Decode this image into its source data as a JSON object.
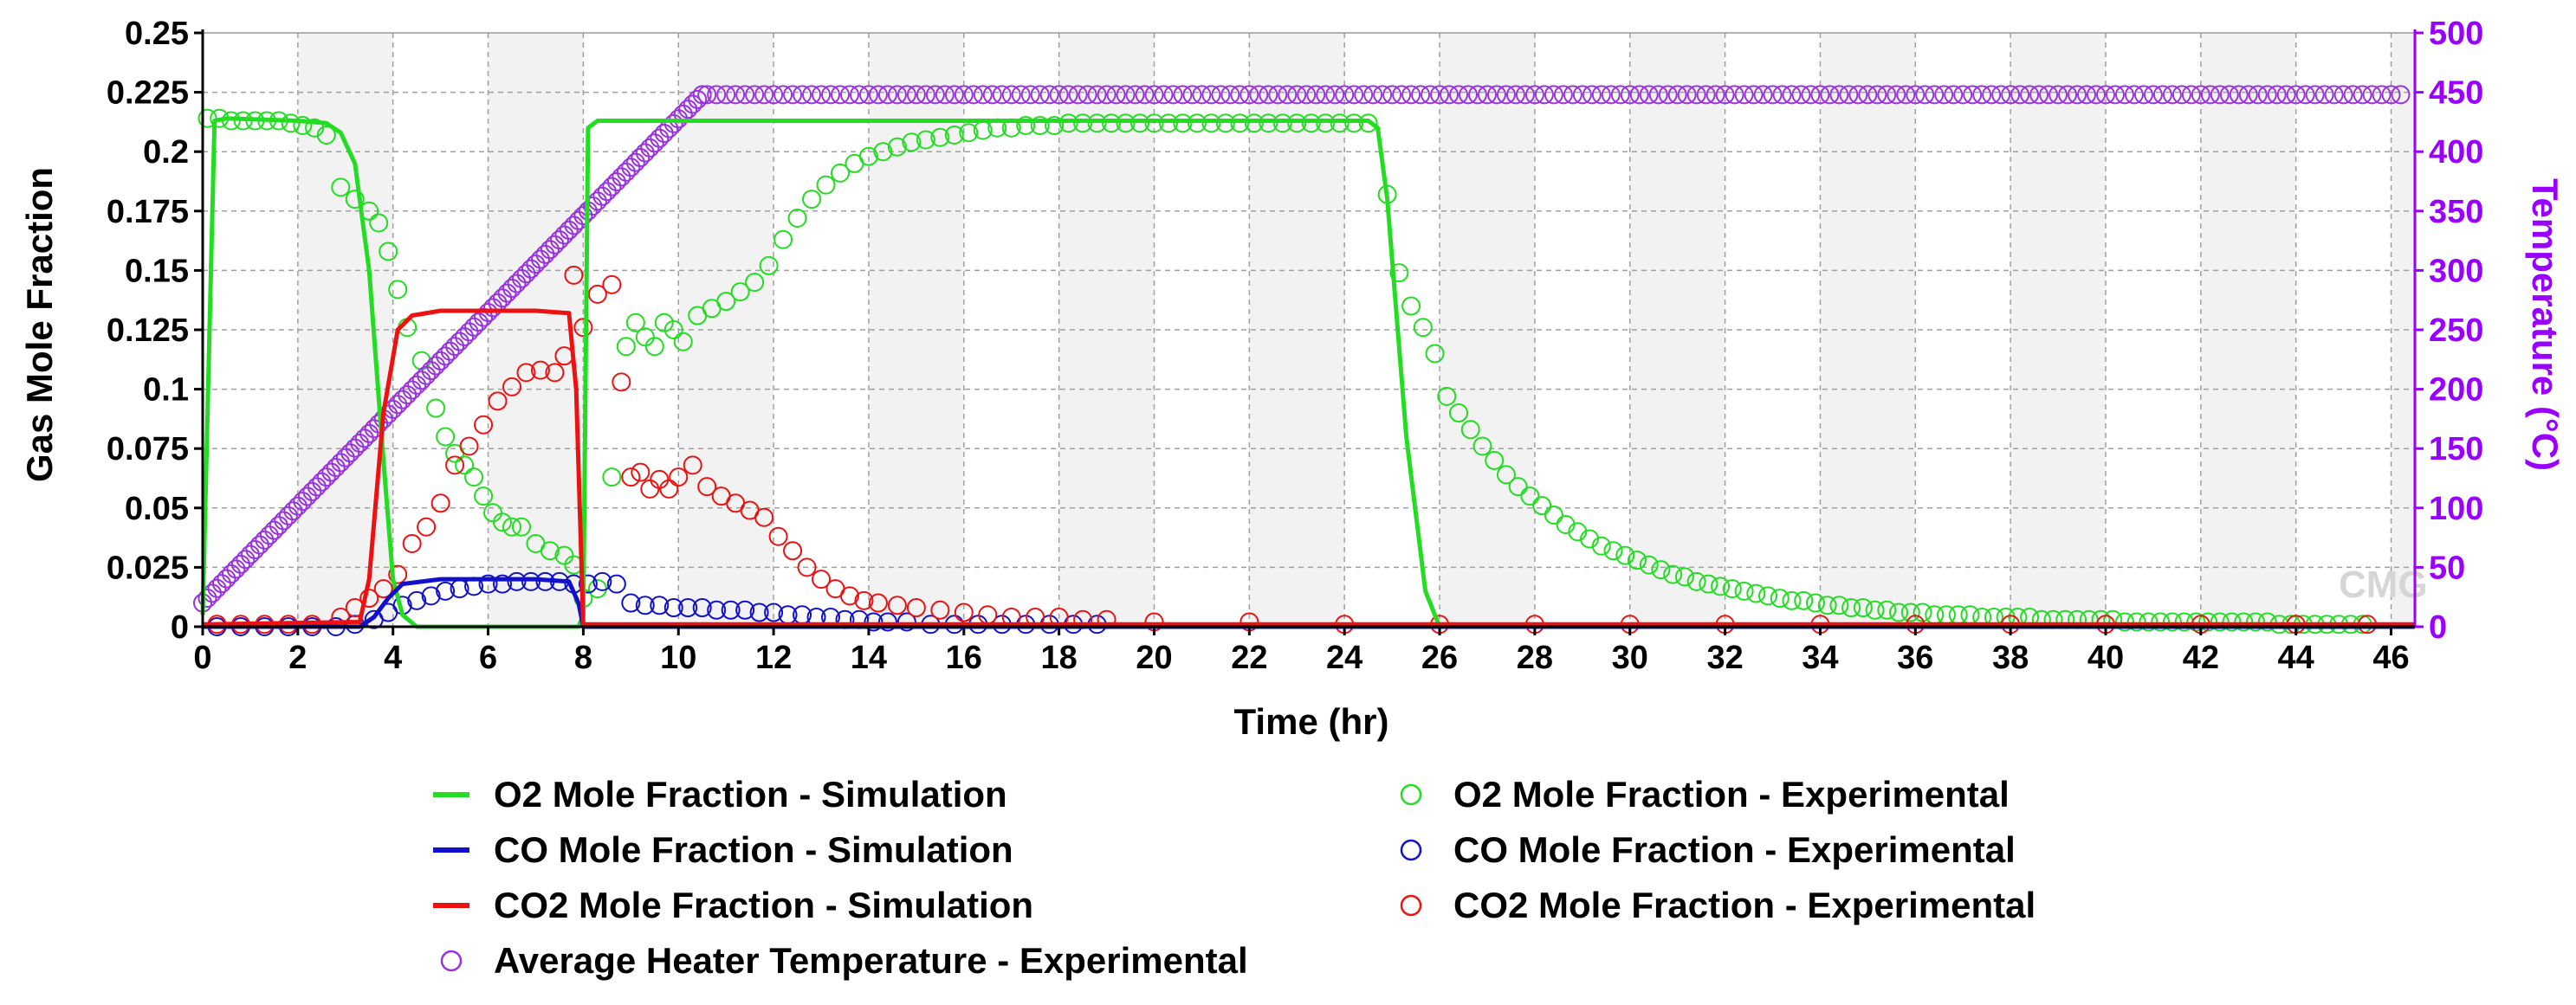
{
  "chart_data": {
    "type": "line",
    "title": "",
    "xlabel": "Time (hr)",
    "ylabel": "Gas Mole Fraction",
    "y2label": "Temperature (°C)",
    "xlim": [
      0,
      46.5
    ],
    "ylim": [
      0,
      0.25
    ],
    "y2lim": [
      0,
      500
    ],
    "xticks": [
      0,
      2,
      4,
      6,
      8,
      10,
      12,
      14,
      16,
      18,
      20,
      22,
      24,
      26,
      28,
      30,
      32,
      34,
      36,
      38,
      40,
      42,
      44,
      46
    ],
    "yticks": [
      "0",
      "0.025",
      "0.05",
      "0.075",
      "0.1",
      "0.125",
      "0.15",
      "0.175",
      "0.2",
      "0.225",
      "0.25"
    ],
    "y2ticks": [
      "0",
      "50",
      "100",
      "150",
      "200",
      "250",
      "300",
      "350",
      "400",
      "450",
      "500"
    ],
    "grid": true,
    "watermark": "CMG",
    "colors": {
      "o2": "#22dd22",
      "co": "#1111cc",
      "co2": "#ee1111",
      "temp": "#9933dd",
      "y2axis": "#9900ff"
    },
    "series": [
      {
        "name": "O2 Mole Fraction  - Simulation",
        "kind": "line",
        "axis": "left",
        "color": "#22dd22",
        "x": [
          0,
          0.25,
          0.5,
          2.0,
          2.6,
          2.9,
          3.2,
          3.5,
          3.8,
          4.0,
          4.2,
          4.5,
          7.6,
          7.9,
          8.0,
          8.1,
          8.3,
          10.0,
          24.5,
          24.7,
          24.9,
          25.3,
          25.7,
          26.0,
          46.5
        ],
        "y": [
          0.005,
          0.213,
          0.214,
          0.213,
          0.212,
          0.208,
          0.195,
          0.15,
          0.07,
          0.02,
          0.005,
          0.0,
          0.0,
          0.0,
          0.005,
          0.21,
          0.213,
          0.213,
          0.213,
          0.21,
          0.18,
          0.08,
          0.015,
          0.0,
          0.0
        ]
      },
      {
        "name": "CO Mole Fraction - Simulation",
        "kind": "line",
        "axis": "left",
        "color": "#1111cc",
        "x": [
          0,
          3.3,
          3.6,
          3.9,
          4.2,
          5.0,
          6.0,
          7.0,
          7.7,
          7.9,
          8.0,
          46.5
        ],
        "y": [
          0,
          0,
          0.004,
          0.012,
          0.018,
          0.02,
          0.02,
          0.02,
          0.019,
          0.01,
          0.0,
          0.0
        ]
      },
      {
        "name": "CO2 Mole Fraction - Simulation",
        "kind": "line",
        "axis": "left",
        "color": "#ee1111",
        "x": [
          0,
          3.3,
          3.5,
          3.8,
          4.1,
          4.4,
          5.0,
          6.0,
          7.0,
          7.7,
          7.85,
          8.0,
          46.5
        ],
        "y": [
          0.001,
          0.002,
          0.02,
          0.09,
          0.125,
          0.131,
          0.133,
          0.133,
          0.133,
          0.132,
          0.1,
          0.001,
          0.001
        ]
      },
      {
        "name": "O2 Mole Fraction  - Experimental",
        "kind": "scatter",
        "axis": "left",
        "color": "#22dd22",
        "x": [
          0.1,
          0.35,
          0.6,
          0.85,
          1.1,
          1.35,
          1.6,
          1.85,
          2.1,
          2.35,
          2.6,
          2.9,
          3.2,
          3.5,
          3.7,
          3.9,
          4.1,
          4.3,
          4.6,
          4.9,
          5.1,
          5.3,
          5.5,
          5.7,
          5.9,
          6.1,
          6.3,
          6.5,
          6.7,
          7.0,
          7.3,
          7.6,
          7.8,
          8.0,
          8.3,
          8.6,
          8.9,
          9.1,
          9.3,
          9.5,
          9.7,
          9.9,
          10.1,
          10.4,
          10.7,
          11.0,
          11.3,
          11.6,
          11.9,
          12.2,
          12.5,
          12.8,
          13.1,
          13.4,
          13.7,
          14.0,
          14.3,
          14.6,
          14.9,
          15.2,
          15.5,
          15.8,
          16.1,
          16.4,
          16.7,
          17.0,
          17.3,
          17.6,
          17.9,
          18.2,
          18.5,
          18.8,
          19.1,
          19.4,
          19.7,
          20.0,
          20.3,
          20.6,
          20.9,
          21.2,
          21.5,
          21.8,
          22.1,
          22.4,
          22.7,
          23.0,
          23.3,
          23.6,
          23.9,
          24.2,
          24.5,
          24.9,
          25.15,
          25.4,
          25.65,
          25.9,
          26.15,
          26.4,
          26.65,
          26.9,
          27.15,
          27.4,
          27.65,
          27.9,
          28.15,
          28.4,
          28.65,
          28.9,
          29.15,
          29.4,
          29.65,
          29.9,
          30.15,
          30.4,
          30.65,
          30.9,
          31.15,
          31.4,
          31.65,
          31.9,
          32.15,
          32.4,
          32.65,
          32.9,
          33.15,
          33.4,
          33.65,
          33.9,
          34.15,
          34.4,
          34.65,
          34.9,
          35.15,
          35.4,
          35.65,
          35.9,
          36.15,
          36.4,
          36.65,
          36.9,
          37.15,
          37.4,
          37.65,
          37.9,
          38.15,
          38.4,
          38.65,
          38.9,
          39.15,
          39.4,
          39.65,
          39.9,
          40.15,
          40.4,
          40.65,
          40.9,
          41.15,
          41.4,
          41.65,
          41.9,
          42.15,
          42.4,
          42.65,
          42.9,
          43.15,
          43.4,
          43.65,
          43.9,
          44.15,
          44.4,
          44.65,
          44.9,
          45.15,
          45.4
        ],
        "y": [
          0.214,
          0.214,
          0.213,
          0.213,
          0.213,
          0.213,
          0.213,
          0.212,
          0.211,
          0.21,
          0.207,
          0.185,
          0.18,
          0.175,
          0.17,
          0.158,
          0.142,
          0.126,
          0.112,
          0.092,
          0.08,
          0.073,
          0.068,
          0.063,
          0.055,
          0.048,
          0.044,
          0.042,
          0.042,
          0.035,
          0.032,
          0.03,
          0.026,
          0.012,
          0.016,
          0.063,
          0.118,
          0.128,
          0.122,
          0.118,
          0.128,
          0.125,
          0.12,
          0.131,
          0.134,
          0.137,
          0.141,
          0.145,
          0.152,
          0.163,
          0.172,
          0.18,
          0.186,
          0.191,
          0.195,
          0.198,
          0.2,
          0.202,
          0.204,
          0.205,
          0.206,
          0.207,
          0.208,
          0.209,
          0.21,
          0.21,
          0.211,
          0.211,
          0.211,
          0.212,
          0.212,
          0.212,
          0.212,
          0.212,
          0.212,
          0.212,
          0.212,
          0.212,
          0.212,
          0.212,
          0.212,
          0.212,
          0.212,
          0.212,
          0.212,
          0.212,
          0.212,
          0.212,
          0.212,
          0.212,
          0.212,
          0.182,
          0.149,
          0.135,
          0.126,
          0.115,
          0.097,
          0.09,
          0.083,
          0.076,
          0.07,
          0.064,
          0.059,
          0.055,
          0.051,
          0.047,
          0.043,
          0.04,
          0.037,
          0.034,
          0.032,
          0.03,
          0.028,
          0.026,
          0.024,
          0.022,
          0.021,
          0.019,
          0.018,
          0.017,
          0.016,
          0.015,
          0.014,
          0.013,
          0.012,
          0.011,
          0.011,
          0.01,
          0.009,
          0.009,
          0.008,
          0.008,
          0.007,
          0.007,
          0.006,
          0.006,
          0.006,
          0.005,
          0.005,
          0.005,
          0.005,
          0.004,
          0.004,
          0.004,
          0.004,
          0.004,
          0.003,
          0.003,
          0.003,
          0.003,
          0.003,
          0.003,
          0.003,
          0.002,
          0.002,
          0.002,
          0.002,
          0.002,
          0.002,
          0.002,
          0.002,
          0.002,
          0.002,
          0.002,
          0.002,
          0.002,
          0.001,
          0.001,
          0.001,
          0.001,
          0.001,
          0.001,
          0.001,
          0.001
        ]
      },
      {
        "name": "CO Mole Fraction  - Experimental",
        "kind": "scatter",
        "axis": "left",
        "color": "#1111cc",
        "x": [
          0.3,
          0.8,
          1.3,
          1.8,
          2.3,
          2.8,
          3.2,
          3.6,
          3.9,
          4.2,
          4.5,
          4.8,
          5.1,
          5.4,
          5.7,
          6.0,
          6.3,
          6.6,
          6.9,
          7.2,
          7.5,
          7.8,
          8.1,
          8.4,
          8.7,
          9.0,
          9.3,
          9.6,
          9.9,
          10.2,
          10.5,
          10.8,
          11.1,
          11.4,
          11.7,
          12.0,
          12.3,
          12.6,
          12.9,
          13.2,
          13.5,
          13.8,
          14.1,
          14.4,
          14.8,
          15.3,
          15.8,
          16.3,
          16.8,
          17.3,
          17.8,
          18.3,
          18.8
        ],
        "y": [
          0,
          0,
          0,
          0,
          0,
          0,
          0.001,
          0.003,
          0.006,
          0.009,
          0.011,
          0.013,
          0.015,
          0.016,
          0.017,
          0.018,
          0.018,
          0.019,
          0.019,
          0.019,
          0.019,
          0.018,
          0.018,
          0.019,
          0.018,
          0.01,
          0.009,
          0.009,
          0.008,
          0.008,
          0.008,
          0.007,
          0.007,
          0.007,
          0.006,
          0.006,
          0.005,
          0.005,
          0.004,
          0.004,
          0.003,
          0.003,
          0.002,
          0.002,
          0.002,
          0.001,
          0.001,
          0.001,
          0.001,
          0.001,
          0.001,
          0.001,
          0.001
        ]
      },
      {
        "name": "CO2 Mole Fraction - Experimental",
        "kind": "scatter",
        "axis": "left",
        "color": "#ee1111",
        "x": [
          0.3,
          0.8,
          1.3,
          1.8,
          2.3,
          2.9,
          3.2,
          3.5,
          3.8,
          4.1,
          4.4,
          4.7,
          5.0,
          5.3,
          5.6,
          5.9,
          6.2,
          6.5,
          6.8,
          7.1,
          7.4,
          7.6,
          7.8,
          8.0,
          8.3,
          8.6,
          8.8,
          9.0,
          9.2,
          9.4,
          9.6,
          9.8,
          10.0,
          10.3,
          10.6,
          10.9,
          11.2,
          11.5,
          11.8,
          12.1,
          12.4,
          12.7,
          13.0,
          13.3,
          13.6,
          13.9,
          14.2,
          14.6,
          15.0,
          15.5,
          16.0,
          16.5,
          17.0,
          17.5,
          18.0,
          18.5,
          19.0,
          20.0,
          22.0,
          24.0,
          26.0,
          28.0,
          30.0,
          32.0,
          34.0,
          36.0,
          38.0,
          40.0,
          42.0,
          44.0,
          45.5
        ],
        "y": [
          0.001,
          0.001,
          0.001,
          0.001,
          0.001,
          0.004,
          0.008,
          0.012,
          0.016,
          0.022,
          0.035,
          0.042,
          0.052,
          0.068,
          0.076,
          0.085,
          0.095,
          0.101,
          0.107,
          0.108,
          0.107,
          0.114,
          0.148,
          0.126,
          0.14,
          0.144,
          0.103,
          0.063,
          0.065,
          0.058,
          0.062,
          0.058,
          0.063,
          0.068,
          0.059,
          0.055,
          0.052,
          0.049,
          0.046,
          0.038,
          0.032,
          0.025,
          0.02,
          0.016,
          0.013,
          0.011,
          0.01,
          0.009,
          0.008,
          0.007,
          0.006,
          0.005,
          0.004,
          0.004,
          0.004,
          0.003,
          0.003,
          0.002,
          0.002,
          0.001,
          0.001,
          0.001,
          0.001,
          0.001,
          0.001,
          0.001,
          0.001,
          0.001,
          0.001,
          0.001,
          0.001
        ]
      },
      {
        "name": "Average Heater Temperature - Experimental",
        "kind": "scatter",
        "axis": "right",
        "color": "#9933dd",
        "ramp": {
          "x_start": 0.0,
          "x_end": 10.5,
          "t_start": 20,
          "t_end": 448,
          "step": 0.1
        },
        "plateau": {
          "x_start": 10.6,
          "x_end": 46.3,
          "t": 448,
          "step": 0.2
        }
      }
    ],
    "legend": {
      "placement": "bottom",
      "entries": [
        {
          "label": "O2 Mole Fraction  - Simulation",
          "symbol": "line",
          "color": "#22dd22"
        },
        {
          "label": "O2 Mole Fraction  - Experimental",
          "symbol": "circle",
          "color": "#22dd22"
        },
        {
          "label": "CO Mole Fraction - Simulation",
          "symbol": "line",
          "color": "#1111cc"
        },
        {
          "label": "CO Mole Fraction  - Experimental",
          "symbol": "circle",
          "color": "#1111cc"
        },
        {
          "label": "CO2 Mole Fraction - Simulation",
          "symbol": "line",
          "color": "#ee1111"
        },
        {
          "label": "CO2 Mole Fraction - Experimental",
          "symbol": "circle",
          "color": "#ee1111"
        },
        {
          "label": "Average Heater Temperature - Experimental",
          "symbol": "circle",
          "color": "#9933dd"
        }
      ]
    }
  }
}
